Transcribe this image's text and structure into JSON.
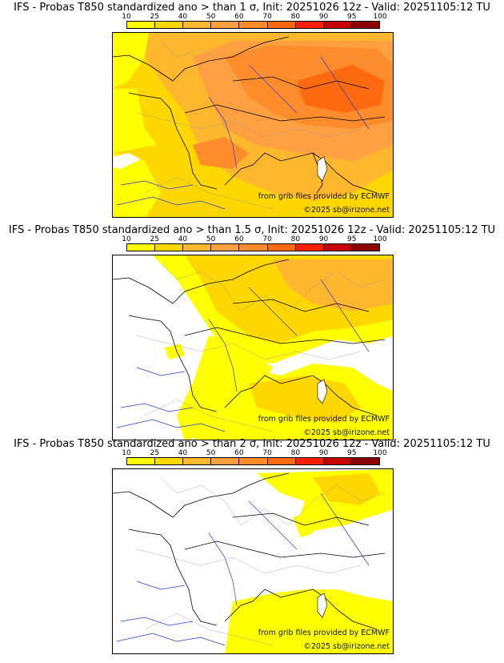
{
  "colorbar": {
    "ticks": [
      "10",
      "25",
      "40",
      "50",
      "60",
      "70",
      "80",
      "90",
      "95",
      "100"
    ],
    "colors": [
      "#ffff00",
      "#ffd700",
      "#ffb82e",
      "#ffa040",
      "#ff8c2a",
      "#ff6a10",
      "#ff2000",
      "#c80000",
      "#8c0000",
      "#4a0000"
    ]
  },
  "panels": [
    {
      "title": "IFS - Probas T850  standardized ano > than 1 σ, Init: 20251026 12z - Valid: 20251105:12 TU",
      "credit_source": "from grib files provided by ECMWF",
      "credit_copyright": "©2025 sb@irizone.net"
    },
    {
      "title": "IFS - Probas T850  standardized ano > than 1.5 σ, Init: 20251026 12z - Valid: 20251105:12 TU",
      "credit_source": "from grib files provided by ECMWF",
      "credit_copyright": "©2025 sb@irizone.net"
    },
    {
      "title": "IFS - Probas T850  standardized ano > than 2 σ, Init: 20251026 12z - Valid: 20251105:12 TU",
      "credit_source": "from grib files provided by ECMWF",
      "credit_copyright": "©2025 sb@irizone.net"
    }
  ]
}
